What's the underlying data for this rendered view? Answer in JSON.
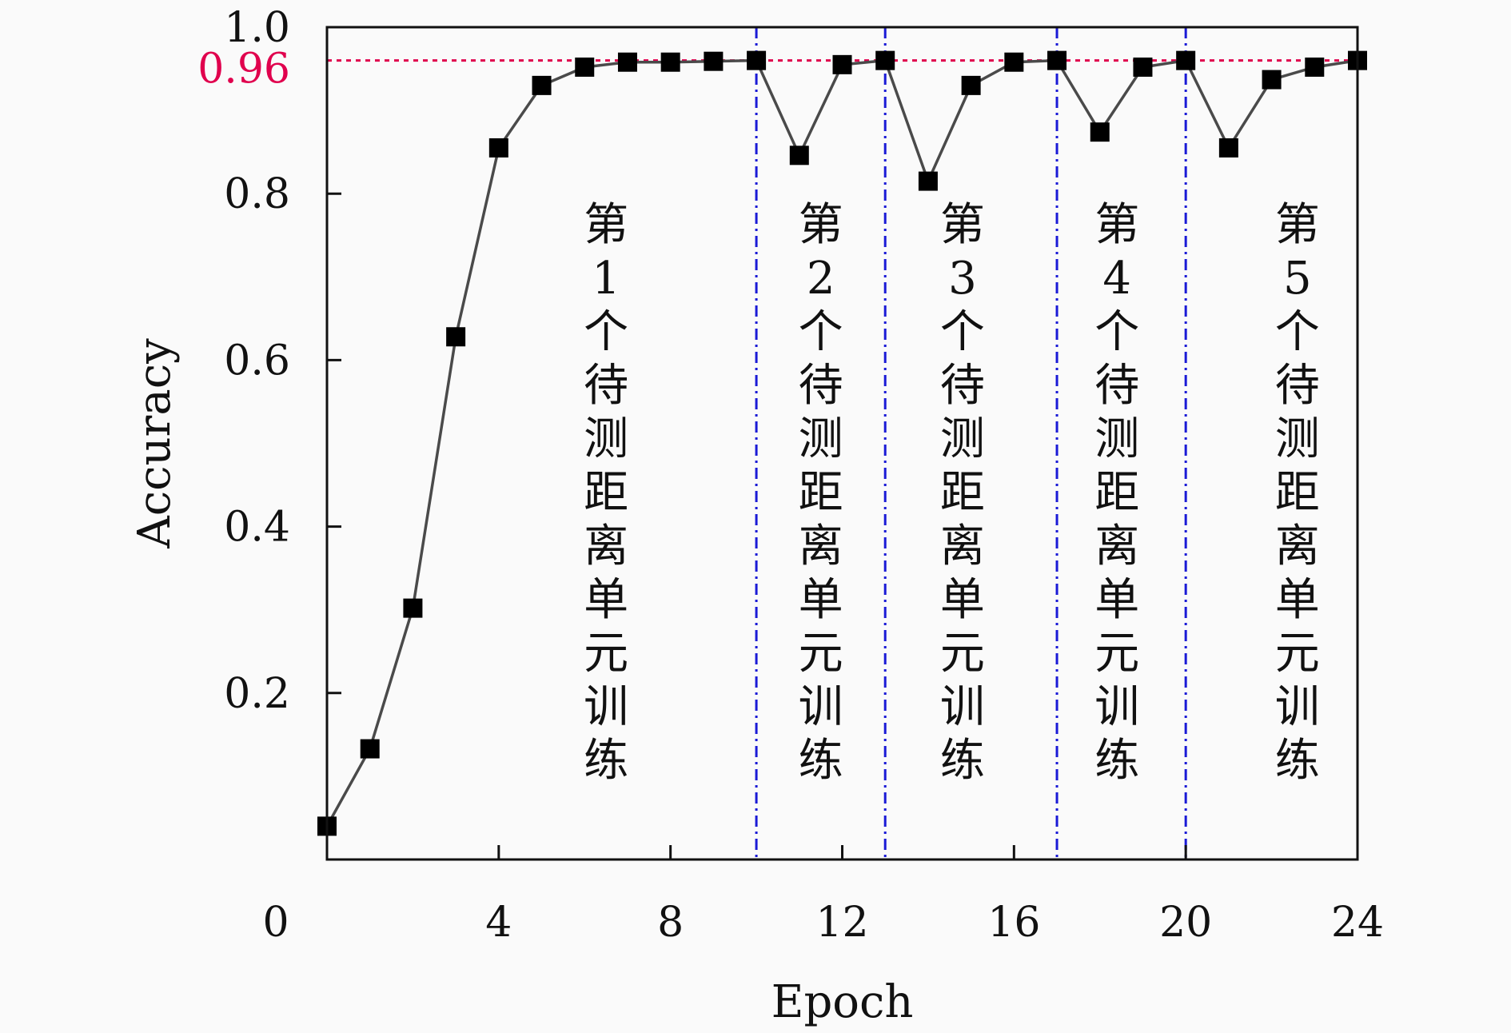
{
  "chart_data": {
    "type": "line",
    "xlabel": "Epoch",
    "ylabel": "Accuracy",
    "xlim": [
      0,
      24
    ],
    "ylim": [
      0,
      1.0
    ],
    "x_ticks": [
      0,
      4,
      8,
      12,
      16,
      20,
      24
    ],
    "x_tick_labels": [
      "0",
      "4",
      "8",
      "12",
      "16",
      "20",
      "24"
    ],
    "y_ticks": [
      0.2,
      0.4,
      0.6,
      0.8,
      1.0
    ],
    "y_tick_labels": [
      "0.2",
      "0.4",
      "0.6",
      "0.8",
      "1.0"
    ],
    "series": [
      {
        "x": [
          0,
          1,
          2,
          3,
          4,
          5,
          6,
          7,
          8,
          9,
          10,
          11,
          12,
          13,
          14,
          15,
          16,
          17,
          18,
          19,
          20,
          21,
          22,
          23,
          24
        ],
        "values": [
          0.04,
          0.133,
          0.302,
          0.628,
          0.855,
          0.93,
          0.952,
          0.958,
          0.958,
          0.959,
          0.96,
          0.846,
          0.955,
          0.96,
          0.815,
          0.93,
          0.958,
          0.96,
          0.874,
          0.952,
          0.96,
          0.855,
          0.937,
          0.952,
          0.96
        ],
        "color": "#4a4a4a",
        "marker": "square"
      }
    ],
    "reference_line": {
      "y": 0.96,
      "label": "0.96",
      "color": "#e0004d"
    },
    "section_dividers": {
      "x": [
        10,
        13,
        17,
        20
      ],
      "color": "#1a1ad6"
    },
    "section_labels": [
      {
        "x": 6.5,
        "chars": [
          "第",
          "1",
          "个",
          "待",
          "测",
          "距",
          "离",
          "单",
          "元",
          "训",
          "练"
        ]
      },
      {
        "x": 11.5,
        "chars": [
          "第",
          "2",
          "个",
          "待",
          "测",
          "距",
          "离",
          "单",
          "元",
          "训",
          "练"
        ]
      },
      {
        "x": 14.8,
        "chars": [
          "第",
          "3",
          "个",
          "待",
          "测",
          "距",
          "离",
          "单",
          "元",
          "训",
          "练"
        ]
      },
      {
        "x": 18.4,
        "chars": [
          "第",
          "4",
          "个",
          "待",
          "测",
          "距",
          "离",
          "单",
          "元",
          "训",
          "练"
        ]
      },
      {
        "x": 22.6,
        "chars": [
          "第",
          "5",
          "个",
          "待",
          "测",
          "距",
          "离",
          "单",
          "元",
          "训",
          "练"
        ]
      }
    ],
    "grid": false,
    "legend": "none"
  }
}
